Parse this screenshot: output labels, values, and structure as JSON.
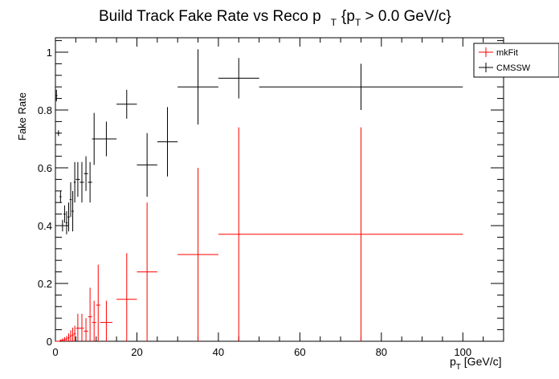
{
  "chart_data": {
    "type": "scatter",
    "title": "Build Track Fake Rate vs Reco p",
    "title_sub": "T",
    "title_cut": "{p",
    "title_cut_sub": "T",
    "title_cut_rest": " > 0.0 GeV/c}",
    "xlabel_main": "p",
    "xlabel_sub": "T",
    "xlabel_rest": " [GeV/c]",
    "ylabel": "Fake Rate",
    "xlim": [
      0,
      110
    ],
    "ylim": [
      0,
      1.05
    ],
    "x_ticks": [
      0,
      20,
      40,
      60,
      80,
      100
    ],
    "y_ticks": [
      0,
      0.2,
      0.4,
      0.6,
      0.8,
      1
    ],
    "x_tick_labels": [
      "0",
      "20",
      "40",
      "60",
      "80",
      "100"
    ],
    "y_tick_labels": [
      "0",
      "0.2",
      "0.4",
      "0.6",
      "0.8",
      "1"
    ],
    "grid": false,
    "legend_position": "top-right",
    "colors": {
      "mkfit": "#ff0000",
      "cmssw": "#000000",
      "frame": "#000000"
    },
    "series": [
      {
        "name": "mkFit",
        "color": "#ff0000",
        "points": [
          {
            "x": 0.25,
            "y": 0,
            "xerr": 0.25,
            "yerr": 0
          },
          {
            "x": 0.75,
            "y": 0,
            "xerr": 0.25,
            "yerr": 0
          },
          {
            "x": 1.25,
            "y": 0.002,
            "xerr": 0.25,
            "yerr": 0.004
          },
          {
            "x": 1.75,
            "y": 0.004,
            "xerr": 0.25,
            "yerr": 0.006
          },
          {
            "x": 2.25,
            "y": 0.006,
            "xerr": 0.25,
            "yerr": 0.008
          },
          {
            "x": 2.75,
            "y": 0.008,
            "xerr": 0.25,
            "yerr": 0.01
          },
          {
            "x": 3.25,
            "y": 0.012,
            "xerr": 0.25,
            "yerr": 0.015
          },
          {
            "x": 3.75,
            "y": 0.018,
            "xerr": 0.25,
            "yerr": 0.02
          },
          {
            "x": 4.25,
            "y": 0.022,
            "xerr": 0.25,
            "yerr": 0.025
          },
          {
            "x": 4.75,
            "y": 0.026,
            "xerr": 0.25,
            "yerr": 0.028
          },
          {
            "x": 5.5,
            "y": 0.045,
            "xerr": 0.5,
            "yerr": 0.05
          },
          {
            "x": 6.5,
            "y": 0.045,
            "xerr": 0.5,
            "yerr": 0.05
          },
          {
            "x": 7.5,
            "y": 0.035,
            "xerr": 0.5,
            "yerr": 0.045
          },
          {
            "x": 8.5,
            "y": 0.085,
            "xerr": 0.5,
            "yerr": 0.1
          },
          {
            "x": 9.5,
            "y": 0.065,
            "xerr": 0.5,
            "yerr": 0.075
          },
          {
            "x": 10.5,
            "y": 0.125,
            "xerr": 0.5,
            "yerr": 0.14
          },
          {
            "x": 12.5,
            "y": 0.065,
            "xerr": 1.5,
            "yerr": 0.075
          },
          {
            "x": 17.5,
            "y": 0.145,
            "xerr": 2.5,
            "yerr": 0.16
          },
          {
            "x": 22.5,
            "y": 0.24,
            "xerr": 2.5,
            "yerr": 0.24
          },
          {
            "x": 35,
            "y": 0.3,
            "xerr": 5,
            "yerr": 0.3
          },
          {
            "x": 45,
            "y": 0.37,
            "xerr": 5,
            "yerr": 0.37
          },
          {
            "x": 75,
            "y": 0.37,
            "xerr": 25,
            "yerr": 0.37
          }
        ]
      },
      {
        "name": "CMSSW",
        "color": "#000000",
        "points": [
          {
            "x": 0.25,
            "y": 0.85,
            "xerr": 0.25,
            "yerr": 0.02
          },
          {
            "x": 0.75,
            "y": 0.72,
            "xerr": 0.25,
            "yerr": 0.01
          },
          {
            "x": 1.25,
            "y": 0.5,
            "xerr": 0.25,
            "yerr": 0.02
          },
          {
            "x": 1.75,
            "y": 0.4,
            "xerr": 0.25,
            "yerr": 0.02
          },
          {
            "x": 2.25,
            "y": 0.44,
            "xerr": 0.25,
            "yerr": 0.03
          },
          {
            "x": 2.75,
            "y": 0.41,
            "xerr": 0.25,
            "yerr": 0.04
          },
          {
            "x": 3.25,
            "y": 0.43,
            "xerr": 0.25,
            "yerr": 0.05
          },
          {
            "x": 3.75,
            "y": 0.49,
            "xerr": 0.25,
            "yerr": 0.06
          },
          {
            "x": 4.25,
            "y": 0.45,
            "xerr": 0.25,
            "yerr": 0.07
          },
          {
            "x": 4.75,
            "y": 0.55,
            "xerr": 0.25,
            "yerr": 0.07
          },
          {
            "x": 5.5,
            "y": 0.56,
            "xerr": 0.5,
            "yerr": 0.06
          },
          {
            "x": 6.5,
            "y": 0.55,
            "xerr": 0.5,
            "yerr": 0.07
          },
          {
            "x": 7.5,
            "y": 0.58,
            "xerr": 0.5,
            "yerr": 0.06
          },
          {
            "x": 8.5,
            "y": 0.55,
            "xerr": 0.5,
            "yerr": 0.07
          },
          {
            "x": 9.5,
            "y": 0.7,
            "xerr": 0.5,
            "yerr": 0.09
          },
          {
            "x": 12.5,
            "y": 0.7,
            "xerr": 2.5,
            "yerr": 0.06
          },
          {
            "x": 17.5,
            "y": 0.82,
            "xerr": 2.5,
            "yerr": 0.05
          },
          {
            "x": 22.5,
            "y": 0.61,
            "xerr": 2.5,
            "yerr": 0.11
          },
          {
            "x": 27.5,
            "y": 0.69,
            "xerr": 2.5,
            "yerr": 0.12
          },
          {
            "x": 35,
            "y": 0.88,
            "xerr": 5,
            "yerr": 0.13
          },
          {
            "x": 45,
            "y": 0.91,
            "xerr": 5,
            "yerr": 0.07
          },
          {
            "x": 75,
            "y": 0.88,
            "xerr": 25,
            "yerr": 0.08
          }
        ]
      }
    ]
  }
}
